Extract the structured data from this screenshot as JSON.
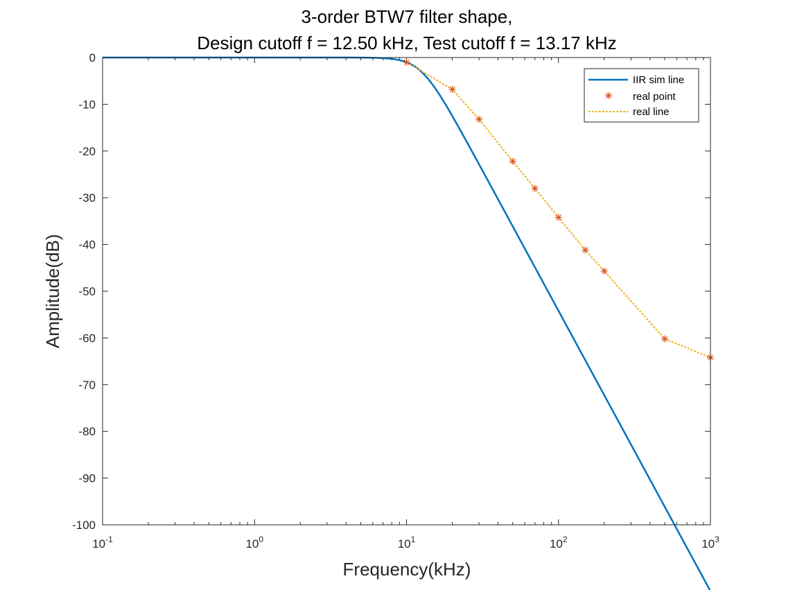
{
  "chart_data": {
    "type": "line",
    "title_lines": [
      "3-order BTW7 filter shape,",
      "Design cutoff f = 12.50 kHz, Test cutoff f = 13.17 kHz"
    ],
    "xlabel": "Frequency(kHz)",
    "ylabel": "Amplitude(dB)",
    "xscale": "log",
    "xlim": [
      0.1,
      1000
    ],
    "ylim": [
      -100,
      0
    ],
    "x_ticks": [
      {
        "base": "10",
        "exp": "-1",
        "value": 0.1
      },
      {
        "base": "10",
        "exp": "0",
        "value": 1
      },
      {
        "base": "10",
        "exp": "1",
        "value": 10
      },
      {
        "base": "10",
        "exp": "2",
        "value": 100
      },
      {
        "base": "10",
        "exp": "3",
        "value": 1000
      }
    ],
    "y_ticks": [
      "0",
      "-10",
      "-20",
      "-30",
      "-40",
      "-50",
      "-60",
      "-70",
      "-80",
      "-90",
      "-100"
    ],
    "y_tick_values": [
      0,
      -10,
      -20,
      -30,
      -40,
      -50,
      -60,
      -70,
      -80,
      -90,
      -100
    ],
    "grid": false,
    "legend_position": "top-right",
    "series": [
      {
        "name": "IIR sim line",
        "style": "solid-line",
        "color": "#0072BD",
        "filter_order": 3,
        "cutoff_khz": 12.5
      },
      {
        "name": "real point",
        "style": "asterisk-markers",
        "color": "#D95319",
        "x": [
          10,
          20,
          30,
          50,
          70,
          100,
          150,
          200,
          500,
          1000
        ],
        "y": [
          -1.0,
          -6.8,
          -13.2,
          -22.2,
          -28.0,
          -34.2,
          -41.2,
          -45.7,
          -60.2,
          -64.2
        ]
      },
      {
        "name": "real line",
        "style": "dashed-line",
        "color": "#EDB120",
        "x": [
          10,
          20,
          30,
          50,
          70,
          100,
          150,
          200,
          500,
          1000
        ],
        "y": [
          -1.0,
          -6.8,
          -13.2,
          -22.2,
          -28.0,
          -34.2,
          -41.2,
          -45.7,
          -60.2,
          -64.2
        ]
      }
    ]
  }
}
